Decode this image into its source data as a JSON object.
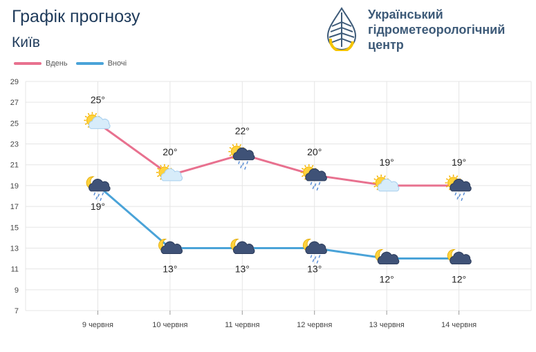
{
  "header": {
    "title": "Графік прогнозу",
    "city": "Київ"
  },
  "organization": {
    "name_lines": [
      "Український",
      "гідрометеорологічний",
      "центр"
    ]
  },
  "legend": {
    "day_label": "Вдень",
    "night_label": "Вночі"
  },
  "colors": {
    "day": "#e8718f",
    "night": "#4aa3d8",
    "text": "#1f3b5b",
    "grid": "#e5e5e5"
  },
  "chart_data": {
    "type": "line",
    "categories": [
      "9 червня",
      "10 червня",
      "11 червня",
      "12 червня",
      "13 червня",
      "14 червня"
    ],
    "series": [
      {
        "name": "Вдень",
        "values": [
          25,
          20,
          22,
          20,
          19,
          19
        ],
        "labels": [
          "25°",
          "20°",
          "22°",
          "20°",
          "19°",
          "19°"
        ],
        "icons": [
          "sun-cloud-icon",
          "sun-cloud-icon",
          "sun-cloud-rain-icon",
          "sun-cloud-rain-icon",
          "sun-cloud-icon",
          "sun-cloud-rain-icon"
        ]
      },
      {
        "name": "Вночі",
        "values": [
          19,
          13,
          13,
          13,
          12,
          12
        ],
        "labels": [
          "19°",
          "13°",
          "13°",
          "13°",
          "12°",
          "12°"
        ],
        "icons": [
          "moon-cloud-rain-icon",
          "moon-cloud-icon",
          "moon-cloud-icon",
          "moon-cloud-rain-icon",
          "moon-cloud-icon",
          "moon-cloud-icon"
        ]
      }
    ],
    "y_ticks": [
      7,
      9,
      11,
      13,
      15,
      17,
      19,
      21,
      23,
      25,
      27,
      29
    ],
    "ylim": [
      7,
      29
    ],
    "grid": true,
    "legend_position": "top-left"
  }
}
